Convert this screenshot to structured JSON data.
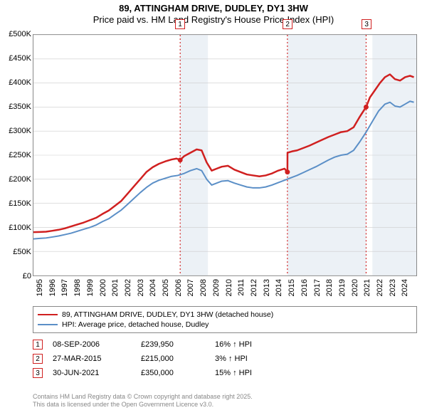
{
  "title": {
    "line1": "89, ATTINGHAM DRIVE, DUDLEY, DY1 3HW",
    "line2": "Price paid vs. HM Land Registry's House Price Index (HPI)"
  },
  "chart": {
    "type": "line",
    "background_color": "#ffffff",
    "plot_border_color": "#888888",
    "shade_color": "rgba(200,215,230,0.35)",
    "x_domain": [
      1995,
      2025.5
    ],
    "y_domain": [
      0,
      500000
    ],
    "y_ticks": [
      {
        "v": 0,
        "label": "£0"
      },
      {
        "v": 50000,
        "label": "£50K"
      },
      {
        "v": 100000,
        "label": "£100K"
      },
      {
        "v": 150000,
        "label": "£150K"
      },
      {
        "v": 200000,
        "label": "£200K"
      },
      {
        "v": 250000,
        "label": "£250K"
      },
      {
        "v": 300000,
        "label": "£300K"
      },
      {
        "v": 350000,
        "label": "£350K"
      },
      {
        "v": 400000,
        "label": "£400K"
      },
      {
        "v": 450000,
        "label": "£450K"
      },
      {
        "v": 500000,
        "label": "£500K"
      }
    ],
    "x_ticks": [
      1995,
      1996,
      1997,
      1998,
      1999,
      2000,
      2001,
      2002,
      2003,
      2004,
      2005,
      2006,
      2007,
      2008,
      2009,
      2010,
      2011,
      2012,
      2013,
      2014,
      2015,
      2016,
      2017,
      2018,
      2019,
      2020,
      2021,
      2022,
      2023,
      2024
    ],
    "shaded_ranges": [
      [
        2006.69,
        2008.9
      ],
      [
        2015.23,
        2021.5
      ],
      [
        2022.0,
        2025.5
      ]
    ],
    "series": [
      {
        "name": "price_paid",
        "color": "#d02020",
        "width": 2.5,
        "data": [
          [
            1995.0,
            90000
          ],
          [
            1995.5,
            90500
          ],
          [
            1996.0,
            91000
          ],
          [
            1996.5,
            93000
          ],
          [
            1997.0,
            95000
          ],
          [
            1997.5,
            98000
          ],
          [
            1998.0,
            102000
          ],
          [
            1998.5,
            106000
          ],
          [
            1999.0,
            110000
          ],
          [
            1999.5,
            115000
          ],
          [
            2000.0,
            120000
          ],
          [
            2000.5,
            128000
          ],
          [
            2001.0,
            135000
          ],
          [
            2001.5,
            145000
          ],
          [
            2002.0,
            155000
          ],
          [
            2002.5,
            170000
          ],
          [
            2003.0,
            185000
          ],
          [
            2003.5,
            200000
          ],
          [
            2004.0,
            215000
          ],
          [
            2004.5,
            225000
          ],
          [
            2005.0,
            232000
          ],
          [
            2005.5,
            237000
          ],
          [
            2006.0,
            241000
          ],
          [
            2006.4,
            243000
          ],
          [
            2006.69,
            239950
          ],
          [
            2007.0,
            248000
          ],
          [
            2007.5,
            255000
          ],
          [
            2008.0,
            262000
          ],
          [
            2008.4,
            260000
          ],
          [
            2008.8,
            235000
          ],
          [
            2009.2,
            218000
          ],
          [
            2009.6,
            222000
          ],
          [
            2010.0,
            226000
          ],
          [
            2010.5,
            228000
          ],
          [
            2011.0,
            220000
          ],
          [
            2011.5,
            215000
          ],
          [
            2012.0,
            210000
          ],
          [
            2012.5,
            208000
          ],
          [
            2013.0,
            206000
          ],
          [
            2013.5,
            208000
          ],
          [
            2014.0,
            212000
          ],
          [
            2014.5,
            218000
          ],
          [
            2015.0,
            222000
          ],
          [
            2015.23,
            215000
          ],
          [
            2015.24,
            255000
          ],
          [
            2015.6,
            258000
          ],
          [
            2016.0,
            260000
          ],
          [
            2016.5,
            265000
          ],
          [
            2017.0,
            270000
          ],
          [
            2017.5,
            276000
          ],
          [
            2018.0,
            282000
          ],
          [
            2018.5,
            288000
          ],
          [
            2019.0,
            293000
          ],
          [
            2019.5,
            298000
          ],
          [
            2020.0,
            300000
          ],
          [
            2020.5,
            308000
          ],
          [
            2021.0,
            330000
          ],
          [
            2021.49,
            350000
          ],
          [
            2021.5,
            350000
          ],
          [
            2021.8,
            370000
          ],
          [
            2022.2,
            385000
          ],
          [
            2022.6,
            400000
          ],
          [
            2023.0,
            412000
          ],
          [
            2023.4,
            418000
          ],
          [
            2023.8,
            408000
          ],
          [
            2024.2,
            405000
          ],
          [
            2024.6,
            412000
          ],
          [
            2025.0,
            415000
          ],
          [
            2025.3,
            412000
          ]
        ]
      },
      {
        "name": "hpi",
        "color": "#5b8fc7",
        "width": 2,
        "data": [
          [
            1995.0,
            76000
          ],
          [
            1995.5,
            77000
          ],
          [
            1996.0,
            78000
          ],
          [
            1996.5,
            80000
          ],
          [
            1997.0,
            82000
          ],
          [
            1997.5,
            85000
          ],
          [
            1998.0,
            88000
          ],
          [
            1998.5,
            92000
          ],
          [
            1999.0,
            96000
          ],
          [
            1999.5,
            100000
          ],
          [
            2000.0,
            105000
          ],
          [
            2000.5,
            112000
          ],
          [
            2001.0,
            118000
          ],
          [
            2001.5,
            127000
          ],
          [
            2002.0,
            136000
          ],
          [
            2002.5,
            148000
          ],
          [
            2003.0,
            160000
          ],
          [
            2003.5,
            172000
          ],
          [
            2004.0,
            183000
          ],
          [
            2004.5,
            192000
          ],
          [
            2005.0,
            198000
          ],
          [
            2005.5,
            202000
          ],
          [
            2006.0,
            206000
          ],
          [
            2006.5,
            208000
          ],
          [
            2007.0,
            212000
          ],
          [
            2007.5,
            218000
          ],
          [
            2008.0,
            222000
          ],
          [
            2008.4,
            218000
          ],
          [
            2008.8,
            200000
          ],
          [
            2009.2,
            188000
          ],
          [
            2009.6,
            192000
          ],
          [
            2010.0,
            196000
          ],
          [
            2010.5,
            197000
          ],
          [
            2011.0,
            192000
          ],
          [
            2011.5,
            188000
          ],
          [
            2012.0,
            184000
          ],
          [
            2012.5,
            182000
          ],
          [
            2013.0,
            182000
          ],
          [
            2013.5,
            184000
          ],
          [
            2014.0,
            188000
          ],
          [
            2014.5,
            193000
          ],
          [
            2015.0,
            198000
          ],
          [
            2015.4,
            202000
          ],
          [
            2016.0,
            208000
          ],
          [
            2016.5,
            214000
          ],
          [
            2017.0,
            220000
          ],
          [
            2017.5,
            226000
          ],
          [
            2018.0,
            233000
          ],
          [
            2018.5,
            240000
          ],
          [
            2019.0,
            246000
          ],
          [
            2019.5,
            250000
          ],
          [
            2020.0,
            252000
          ],
          [
            2020.5,
            260000
          ],
          [
            2021.0,
            278000
          ],
          [
            2021.5,
            298000
          ],
          [
            2022.0,
            320000
          ],
          [
            2022.5,
            342000
          ],
          [
            2023.0,
            356000
          ],
          [
            2023.4,
            360000
          ],
          [
            2023.8,
            352000
          ],
          [
            2024.2,
            350000
          ],
          [
            2024.6,
            356000
          ],
          [
            2025.0,
            362000
          ],
          [
            2025.3,
            360000
          ]
        ]
      }
    ],
    "markers": [
      {
        "n": "1",
        "x": 2006.69,
        "color": "#d02020"
      },
      {
        "n": "2",
        "x": 2015.23,
        "color": "#d02020"
      },
      {
        "n": "3",
        "x": 2021.5,
        "color": "#d02020"
      }
    ],
    "sale_points": {
      "color": "#d02020",
      "radius": 3.5,
      "points": [
        [
          2006.69,
          239950
        ],
        [
          2015.23,
          215000
        ],
        [
          2021.5,
          350000
        ]
      ]
    }
  },
  "legend": {
    "items": [
      {
        "color": "#d02020",
        "label": "89, ATTINGHAM DRIVE, DUDLEY, DY1 3HW (detached house)"
      },
      {
        "color": "#5b8fc7",
        "label": "HPI: Average price, detached house, Dudley"
      }
    ]
  },
  "events": [
    {
      "n": "1",
      "date": "08-SEP-2006",
      "price": "£239,950",
      "pct": "16% ↑ HPI"
    },
    {
      "n": "2",
      "date": "27-MAR-2015",
      "price": "£215,000",
      "pct": "3% ↑ HPI"
    },
    {
      "n": "3",
      "date": "30-JUN-2021",
      "price": "£350,000",
      "pct": "15% ↑ HPI"
    }
  ],
  "footer": {
    "line1": "Contains HM Land Registry data © Crown copyright and database right 2025.",
    "line2": "This data is licensed under the Open Government Licence v3.0."
  }
}
